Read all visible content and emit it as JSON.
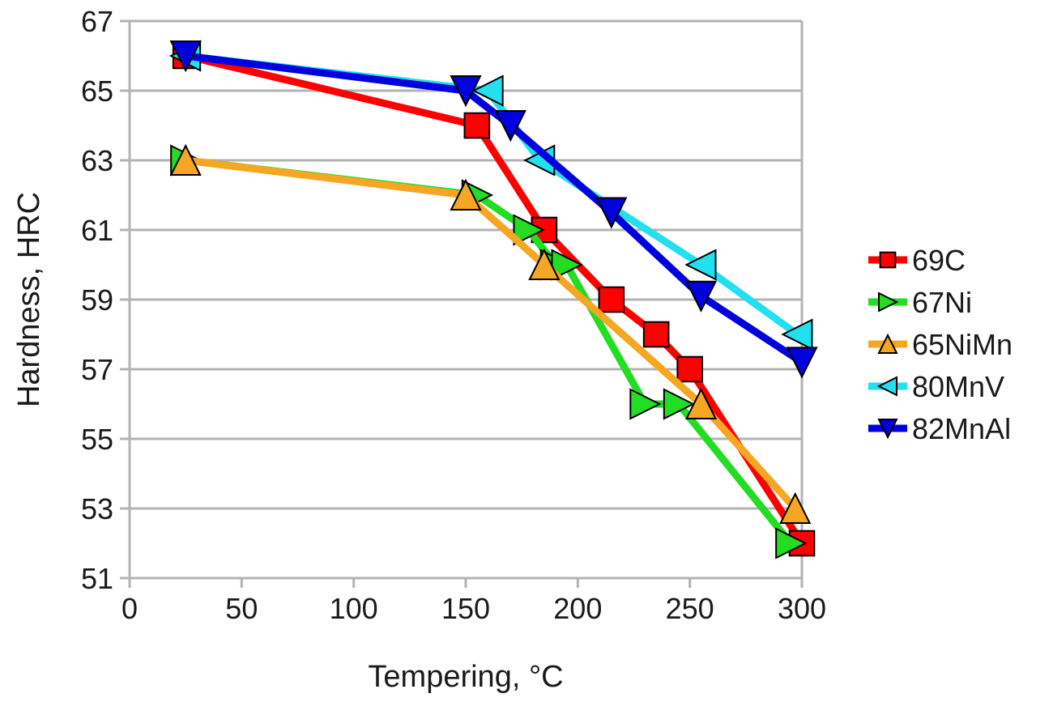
{
  "chart_data": {
    "type": "line",
    "title": "",
    "xlabel": "Tempering, °C",
    "ylabel": "Hardness, HRC",
    "xlim": [
      0,
      300
    ],
    "ylim": [
      51,
      67
    ],
    "xticks": [
      0,
      50,
      100,
      150,
      200,
      250,
      300
    ],
    "yticks": [
      51,
      53,
      55,
      57,
      59,
      61,
      63,
      65,
      67
    ],
    "grid": "horizontal",
    "legend_position": "right",
    "series": [
      {
        "name": "69C",
        "color": "#ff0000",
        "marker": "square",
        "points": [
          [
            25,
            66
          ],
          [
            155,
            64
          ],
          [
            185,
            61
          ],
          [
            215,
            59
          ],
          [
            235,
            58
          ],
          [
            250,
            57
          ],
          [
            300,
            52
          ]
        ]
      },
      {
        "name": "67Ni",
        "color": "#22dd22",
        "marker": "triangle-right",
        "points": [
          [
            25,
            63
          ],
          [
            155,
            62
          ],
          [
            178,
            61
          ],
          [
            190,
            60
          ],
          [
            195,
            60
          ],
          [
            230,
            56
          ],
          [
            245,
            56
          ],
          [
            295,
            52
          ]
        ]
      },
      {
        "name": "65NiMn",
        "color": "#f5a623",
        "marker": "triangle-up",
        "points": [
          [
            25,
            63
          ],
          [
            150,
            62
          ],
          [
            185,
            60
          ],
          [
            255,
            56
          ],
          [
            297,
            53
          ]
        ]
      },
      {
        "name": "80MnV",
        "color": "#22e0f0",
        "marker": "triangle-left",
        "points": [
          [
            25,
            66
          ],
          [
            160,
            65
          ],
          [
            183,
            63
          ],
          [
            255,
            60
          ],
          [
            298,
            58
          ]
        ]
      },
      {
        "name": "82MnAl",
        "color": "#0000dd",
        "marker": "triangle-down",
        "points": [
          [
            25,
            66
          ],
          [
            150,
            65
          ],
          [
            170,
            64
          ],
          [
            215,
            61.5
          ],
          [
            255,
            59.1
          ],
          [
            300,
            57.2
          ]
        ]
      }
    ]
  }
}
